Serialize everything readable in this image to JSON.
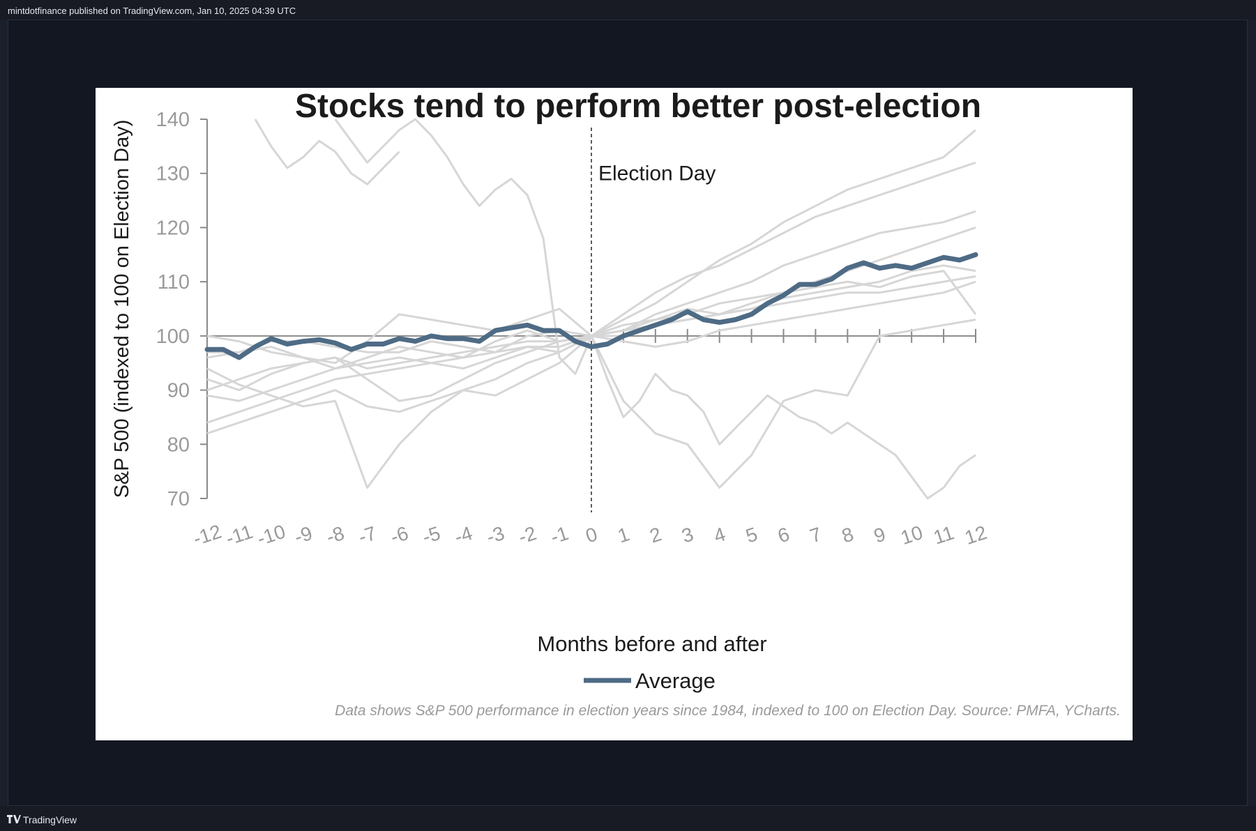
{
  "header": {
    "publish_line": "mintdotfinance published on TradingView.com, Jan 10, 2025 04:39 UTC"
  },
  "footer": {
    "brand": "TradingView"
  },
  "colors": {
    "average": "#4e6b85",
    "gray_lines": "#d6d6d6",
    "axis": "#8a8a8a",
    "text": "#1b1b1b",
    "note": "#9a9a9a"
  },
  "chart_data": {
    "type": "line",
    "title": "Stocks tend to perform better post-election",
    "xlabel": "Months before and after",
    "ylabel": "S&P 500 (indexed to 100 on Election Day)",
    "xlim": [
      -12,
      12
    ],
    "ylim": [
      70,
      140
    ],
    "yticks": [
      70,
      80,
      90,
      100,
      110,
      120,
      130,
      140
    ],
    "xtick_labels": [
      "-12",
      "-11",
      "-10",
      "-9",
      "-8",
      "-7",
      "-6",
      "-5",
      "-4",
      "-3",
      "-2",
      "-1",
      "0",
      "1",
      "2",
      "3",
      "4",
      "5",
      "6",
      "7",
      "8",
      "9",
      "10",
      "11",
      "12"
    ],
    "annotation": "Election Day",
    "legend": {
      "label": "Average",
      "position": "bottom"
    },
    "note": "Data shows S&P 500 performance in election years since 1984, indexed to 100 on Election Day. Source: PMFA, YCharts.",
    "grid": false,
    "series": [
      {
        "name": "Average",
        "highlight": true,
        "x": [
          -12,
          -11.5,
          -11,
          -10.5,
          -10,
          -9.5,
          -9,
          -8.5,
          -8,
          -7.5,
          -7,
          -6.5,
          -6,
          -5.5,
          -5,
          -4.5,
          -4,
          -3.5,
          -3,
          -2.5,
          -2,
          -1.5,
          -1,
          -0.5,
          0,
          0.5,
          1,
          1.5,
          2,
          2.5,
          3,
          3.5,
          4,
          4.5,
          5,
          5.5,
          6,
          6.5,
          7,
          7.5,
          8,
          8.5,
          9,
          9.5,
          10,
          10.5,
          11,
          11.5,
          12
        ],
        "y": [
          97.5,
          97.5,
          96,
          98,
          99.5,
          98.5,
          99,
          99.3,
          98.7,
          97.5,
          98.5,
          98.5,
          99.5,
          99,
          100,
          99.5,
          99.5,
          99,
          101,
          101.5,
          102,
          101,
          101,
          99,
          98,
          98.5,
          100,
          101,
          102,
          103,
          104.5,
          103,
          102.5,
          103,
          104,
          106,
          107.5,
          109.5,
          109.5,
          110.5,
          112.5,
          113.5,
          112.5,
          113,
          112.5,
          113.5,
          114.5,
          114,
          115
        ]
      },
      {
        "x": [
          -12,
          -11,
          -10,
          -9,
          -8,
          -7,
          -6,
          -5,
          -4,
          -3,
          -2,
          -1,
          0,
          1,
          2,
          3,
          4,
          5,
          6,
          7,
          8,
          9,
          10,
          11,
          12
        ],
        "y": [
          97,
          97,
          99,
          99,
          98,
          97,
          97,
          99,
          98,
          97,
          100,
          101,
          100,
          103,
          106,
          110,
          114,
          117,
          121,
          124,
          127,
          129,
          131,
          133,
          138
        ]
      },
      {
        "x": [
          -12,
          -11,
          -10,
          -9,
          -8,
          -7,
          -6,
          -5,
          -4,
          -3,
          -2,
          -1,
          0,
          1,
          2,
          3,
          4,
          5,
          6,
          7,
          8,
          9,
          10,
          11,
          12
        ],
        "y": [
          92,
          90,
          93,
          95,
          96,
          92,
          88,
          89,
          92,
          95,
          97,
          99,
          100,
          104,
          108,
          111,
          113,
          116,
          119,
          122,
          124,
          126,
          128,
          130,
          132
        ]
      },
      {
        "x": [
          -12,
          -11,
          -10,
          -9,
          -8,
          -7,
          -6,
          -5,
          -4,
          -3,
          -2,
          -1,
          0,
          1,
          2,
          3,
          4,
          5,
          6,
          7,
          8,
          9,
          10,
          11,
          12
        ],
        "y": [
          96,
          97,
          98,
          96,
          94,
          96,
          98,
          97,
          96,
          99,
          101,
          99,
          100,
          101,
          104,
          106,
          108,
          110,
          113,
          115,
          117,
          119,
          120,
          121,
          123
        ]
      },
      {
        "x": [
          -12,
          -11,
          -10,
          -9,
          -8,
          -7,
          -6,
          -5,
          -4,
          -3,
          -2,
          -1,
          0,
          1,
          2,
          3,
          4,
          5,
          6,
          7,
          8,
          9,
          10,
          11,
          12
        ],
        "y": [
          89,
          88,
          90,
          92,
          94,
          95,
          96,
          95,
          94,
          96,
          98,
          97,
          100,
          100,
          102,
          103,
          104,
          105,
          107,
          108,
          109,
          110,
          112,
          113,
          112
        ]
      },
      {
        "x": [
          -12,
          -11,
          -10,
          -9,
          -8,
          -7,
          -6,
          -5,
          -4,
          -3,
          -2,
          -1,
          0,
          1,
          2,
          3,
          4,
          5,
          6,
          7,
          8,
          9,
          10,
          11,
          12
        ],
        "y": [
          90,
          92,
          94,
          95,
          96,
          94,
          95,
          96,
          97,
          98,
          99,
          99,
          100,
          102,
          103,
          104,
          106,
          107,
          108,
          109,
          110,
          109,
          111,
          112,
          104
        ]
      },
      {
        "x": [
          -12,
          -11,
          -10,
          -9,
          -8,
          -7,
          -6,
          -5,
          -4,
          -3,
          -2,
          -1,
          0,
          1,
          2,
          3,
          4,
          5,
          6,
          7,
          8,
          9,
          10,
          11,
          12
        ],
        "y": [
          84,
          86,
          88,
          90,
          92,
          93,
          94,
          95,
          96,
          97,
          98,
          98,
          100,
          101,
          102,
          103,
          104,
          105,
          106,
          107,
          108,
          108,
          109,
          110,
          111
        ]
      },
      {
        "x": [
          -12,
          -11,
          -10,
          -9,
          -8,
          -7,
          -6,
          -5,
          -4,
          -3,
          -2,
          -1,
          0,
          1,
          2,
          3,
          4,
          5,
          6,
          7,
          8,
          9,
          10,
          11,
          12
        ],
        "y": [
          82,
          84,
          86,
          88,
          90,
          87,
          86,
          88,
          90,
          92,
          95,
          97,
          100,
          101,
          103,
          105,
          104,
          106,
          108,
          110,
          112,
          114,
          116,
          118,
          120
        ]
      },
      {
        "x": [
          -12,
          -11,
          -10,
          -9,
          -8,
          -7,
          -6,
          -5,
          -4,
          -3,
          -2,
          -1,
          0,
          1,
          2,
          3,
          4,
          5,
          6,
          7,
          8,
          9,
          10,
          11,
          12
        ],
        "y": [
          100,
          99,
          97,
          96,
          95,
          99,
          104,
          103,
          102,
          101,
          103,
          105,
          100,
          99,
          98,
          99,
          101,
          102,
          103,
          104,
          105,
          106,
          107,
          108,
          110
        ]
      },
      {
        "x": [
          -12,
          -11,
          -10,
          -9,
          -8,
          -7,
          -6,
          -5,
          -4,
          -3,
          -2,
          -1,
          0,
          1,
          2,
          3,
          4,
          5,
          6,
          7,
          8,
          9,
          10,
          11,
          12
        ],
        "y": [
          94,
          91,
          89,
          87,
          88,
          72,
          80,
          86,
          90,
          89,
          92,
          95,
          100,
          88,
          82,
          80,
          72,
          78,
          88,
          90,
          89,
          100,
          101,
          102,
          103
        ]
      },
      {
        "x": [
          -8,
          -7.5,
          -7,
          -6.5,
          -6,
          -5.5,
          -5,
          -4.5,
          -4,
          -3.5,
          -3,
          -2.5,
          -2,
          -1.5,
          -1,
          -0.5,
          0,
          0.5,
          1,
          1.5,
          2,
          2.5,
          3,
          3.5,
          4,
          4.5,
          5,
          5.5,
          6,
          6.5,
          7,
          7.5,
          8,
          8.5,
          9,
          9.5,
          10,
          10.5,
          11,
          11.5,
          12
        ],
        "y": [
          140,
          136,
          132,
          135,
          138,
          141,
          137,
          133,
          128,
          124,
          127,
          129,
          126,
          118,
          96,
          93,
          100,
          92,
          85,
          88,
          93,
          90,
          89,
          86,
          80,
          83,
          86,
          89,
          87,
          85,
          84,
          82,
          84,
          82,
          80,
          78,
          74,
          70,
          72,
          76,
          78
        ]
      },
      {
        "x": [
          -10.5,
          -10,
          -9.5,
          -9,
          -8.5,
          -8,
          -7.5,
          -7,
          -6.5,
          -6
        ],
        "y": [
          140,
          135,
          131,
          133,
          136,
          134,
          130,
          128,
          131,
          134
        ]
      }
    ]
  }
}
